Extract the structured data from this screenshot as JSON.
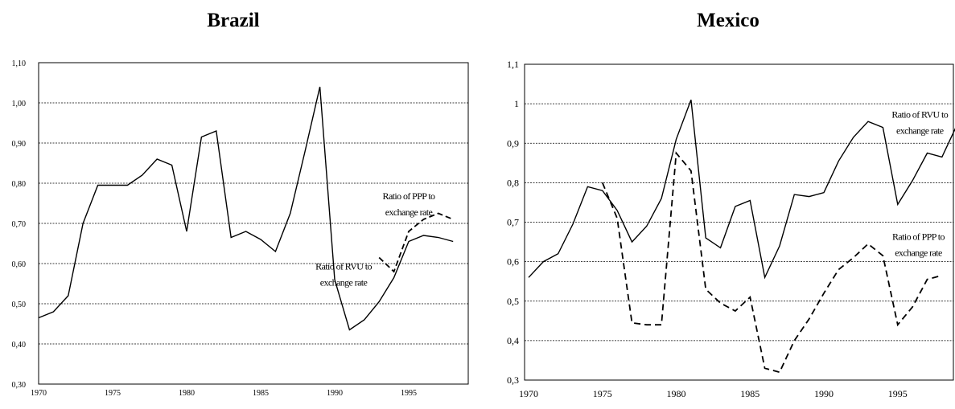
{
  "chart_data": [
    {
      "type": "line",
      "title": "Brazil",
      "xlim": [
        1970,
        1998
      ],
      "ylim": [
        0.3,
        1.1
      ],
      "xticks": [
        1970,
        1975,
        1980,
        1985,
        1990,
        1995
      ],
      "yticks": [
        "0,30",
        "0,40",
        "0,50",
        "0,60",
        "0,70",
        "0,80",
        "0,90",
        "1,00",
        "1,10"
      ],
      "grid": true,
      "series": [
        {
          "name": "Ratio of RVU to exchange rate",
          "style": "solid",
          "x": [
            1970,
            1971,
            1972,
            1973,
            1974,
            1975,
            1976,
            1977,
            1978,
            1979,
            1980,
            1981,
            1982,
            1983,
            1984,
            1985,
            1986,
            1987,
            1988,
            1989,
            1990,
            1991,
            1992,
            1993,
            1994,
            1995,
            1996,
            1997,
            1998
          ],
          "values": [
            0.465,
            0.48,
            0.52,
            0.7,
            0.795,
            0.795,
            0.795,
            0.82,
            0.86,
            0.845,
            0.68,
            0.915,
            0.93,
            0.665,
            0.68,
            0.66,
            0.63,
            0.725,
            0.88,
            1.04,
            0.56,
            0.435,
            0.46,
            0.505,
            0.565,
            0.655,
            0.67,
            0.665,
            0.655
          ]
        },
        {
          "name": "Ratio of PPP to exchange rate",
          "style": "dashed",
          "x": [
            1993,
            1994,
            1995,
            1996,
            1997,
            1998
          ],
          "values": [
            0.615,
            0.58,
            0.68,
            0.71,
            0.725,
            0.71
          ]
        }
      ],
      "annotations": [
        {
          "lines": [
            "Ratio of PPP to",
            "exchange rate"
          ],
          "at": [
            1995.0,
            0.76
          ]
        },
        {
          "lines": [
            "Ratio of RVU to",
            "exchange rate"
          ],
          "at": [
            1990.6,
            0.585
          ]
        }
      ]
    },
    {
      "type": "line",
      "title": "Mexico",
      "xlim": [
        1970,
        1998
      ],
      "ylim": [
        0.3,
        1.1
      ],
      "xticks": [
        1970,
        1975,
        1980,
        1985,
        1990,
        1995
      ],
      "yticks": [
        "0,3",
        "0,4",
        "0,5",
        "0,6",
        "0,7",
        "0,8",
        "0,9",
        "1",
        "1,1"
      ],
      "grid": true,
      "series": [
        {
          "name": "Ratio of RVU to exchange rate",
          "style": "solid",
          "x": [
            1970,
            1971,
            1972,
            1973,
            1974,
            1975,
            1976,
            1977,
            1978,
            1979,
            1980,
            1981,
            1982,
            1983,
            1984,
            1985,
            1986,
            1987,
            1988,
            1989,
            1990,
            1991,
            1992,
            1993,
            1994,
            1995,
            1996,
            1997,
            1998,
            1999
          ],
          "values": [
            0.56,
            0.6,
            0.62,
            0.695,
            0.79,
            0.78,
            0.73,
            0.65,
            0.69,
            0.76,
            0.91,
            1.01,
            0.66,
            0.635,
            0.74,
            0.755,
            0.56,
            0.64,
            0.77,
            0.765,
            0.775,
            0.855,
            0.915,
            0.955,
            0.94,
            0.745,
            0.805,
            0.875,
            0.865,
            0.945
          ]
        },
        {
          "name": "Ratio of PPP to exchange rate",
          "style": "dashed",
          "x": [
            1975,
            1976,
            1977,
            1978,
            1979,
            1980,
            1981,
            1982,
            1983,
            1984,
            1985,
            1986,
            1987,
            1988,
            1989,
            1990,
            1991,
            1992,
            1993,
            1994,
            1995,
            1996,
            1997,
            1998
          ],
          "values": [
            0.8,
            0.71,
            0.445,
            0.44,
            0.44,
            0.875,
            0.83,
            0.53,
            0.495,
            0.475,
            0.51,
            0.33,
            0.32,
            0.4,
            0.455,
            0.52,
            0.58,
            0.61,
            0.645,
            0.615,
            0.44,
            0.485,
            0.555,
            0.565
          ]
        }
      ],
      "annotations": [
        {
          "lines": [
            "Ratio of RVU to",
            "exchange rate"
          ],
          "at": [
            1996.5,
            0.965
          ]
        },
        {
          "lines": [
            "Ratio of PPP to",
            "exchange rate"
          ],
          "at": [
            1996.4,
            0.655
          ]
        }
      ]
    }
  ]
}
